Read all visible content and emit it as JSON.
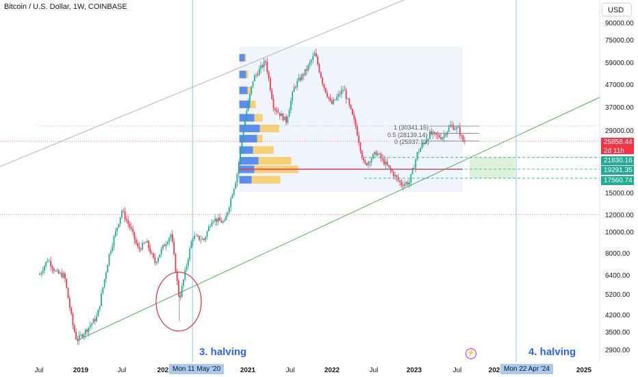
{
  "title": "Bitcoin / U.S. Dollar, 1W, COINBASE",
  "currency_button": "USD",
  "y_labels": [
    "90000.00",
    "75000.00",
    "59000.00",
    "47000.00",
    "37000.00",
    "29000.00",
    "25858.44",
    "21830.16",
    "19291.35",
    "17560.74",
    "15000.00",
    "12000.00",
    "10000.00",
    "8000.00",
    "6400.00",
    "5200.00",
    "4200.00",
    "3500.00",
    "2900.00"
  ],
  "x_labels": [
    "Jul",
    "2019",
    "Jul",
    "202",
    "2021",
    "Jul",
    "2022",
    "Jul",
    "2023",
    "Jul",
    "202",
    "2025"
  ],
  "price_tag": {
    "price": "25858.44",
    "countdown": "2d 11h",
    "color": "#f23645"
  },
  "level_tags": [
    {
      "label": "21830.16",
      "color": "#22ab94"
    },
    {
      "label": "19291.35",
      "color": "#22ab94"
    },
    {
      "label": "17560.74",
      "color": "#22ab94"
    }
  ],
  "date_tags": [
    "Mon 11 May '20",
    "Mon 22 Apr '24"
  ],
  "halvings": [
    "3. halving",
    "4. halving"
  ],
  "fib_levels": [
    "1 (30341.15)",
    "0.5 (28139.14)",
    "0 (25937.13)"
  ],
  "colors": {
    "up": "#22ab94",
    "down": "#f23645",
    "accent": "#2962ff",
    "volume_profile_up": "#5b8def",
    "volume_profile_down": "#f6c95c"
  },
  "chart_data": {
    "type": "candlestick",
    "title": "Bitcoin / U.S. Dollar, 1W, COINBASE",
    "y_scale": "log",
    "ylim": [
      2700,
      100000
    ],
    "x": [
      "2018-07",
      "2019-01",
      "2019-07",
      "2020-01",
      "2020-05-11",
      "2021-01",
      "2021-07",
      "2022-01",
      "2022-07",
      "2023-01",
      "2023-07",
      "2024-01",
      "2024-04-22",
      "2025-01"
    ],
    "series": [
      {
        "values": [
          [
            2018.5,
            6400
          ],
          [
            2018.6,
            7500
          ],
          [
            2018.7,
            6500
          ],
          [
            2018.8,
            6300
          ],
          [
            2018.9,
            3800
          ],
          [
            2018.95,
            3200
          ],
          [
            2019.05,
            3500
          ],
          [
            2019.2,
            4100
          ],
          [
            2019.35,
            8000
          ],
          [
            2019.5,
            12500
          ],
          [
            2019.6,
            10500
          ],
          [
            2019.7,
            8300
          ],
          [
            2019.8,
            9000
          ],
          [
            2019.9,
            7200
          ],
          [
            2020.0,
            8500
          ],
          [
            2020.1,
            9800
          ],
          [
            2020.2,
            4900
          ],
          [
            2020.36,
            9500
          ],
          [
            2020.5,
            9200
          ],
          [
            2020.6,
            11500
          ],
          [
            2020.75,
            11000
          ],
          [
            2020.9,
            18000
          ],
          [
            2021.0,
            33000
          ],
          [
            2021.1,
            50000
          ],
          [
            2021.25,
            60000
          ],
          [
            2021.35,
            37000
          ],
          [
            2021.5,
            32000
          ],
          [
            2021.6,
            46000
          ],
          [
            2021.75,
            55000
          ],
          [
            2021.85,
            65000
          ],
          [
            2021.95,
            47000
          ],
          [
            2022.05,
            38000
          ],
          [
            2022.2,
            45000
          ],
          [
            2022.35,
            30000
          ],
          [
            2022.45,
            20000
          ],
          [
            2022.6,
            23000
          ],
          [
            2022.75,
            19500
          ],
          [
            2022.9,
            16500
          ],
          [
            2023.0,
            16800
          ],
          [
            2023.1,
            23000
          ],
          [
            2023.25,
            28000
          ],
          [
            2023.4,
            27000
          ],
          [
            2023.5,
            30500
          ],
          [
            2023.6,
            29300
          ],
          [
            2023.65,
            26000
          ],
          [
            2023.68,
            25858
          ]
        ]
      }
    ],
    "horizontal_levels": [
      30341.15,
      28139.14,
      25937.13,
      25858.44,
      21830.16,
      19291.35,
      17560.74
    ],
    "vertical_markers": [
      {
        "date": "Mon 11 May '20",
        "label": "3. halving"
      },
      {
        "date": "Mon 22 Apr '24",
        "label": "4. halving"
      }
    ],
    "grid": false
  }
}
